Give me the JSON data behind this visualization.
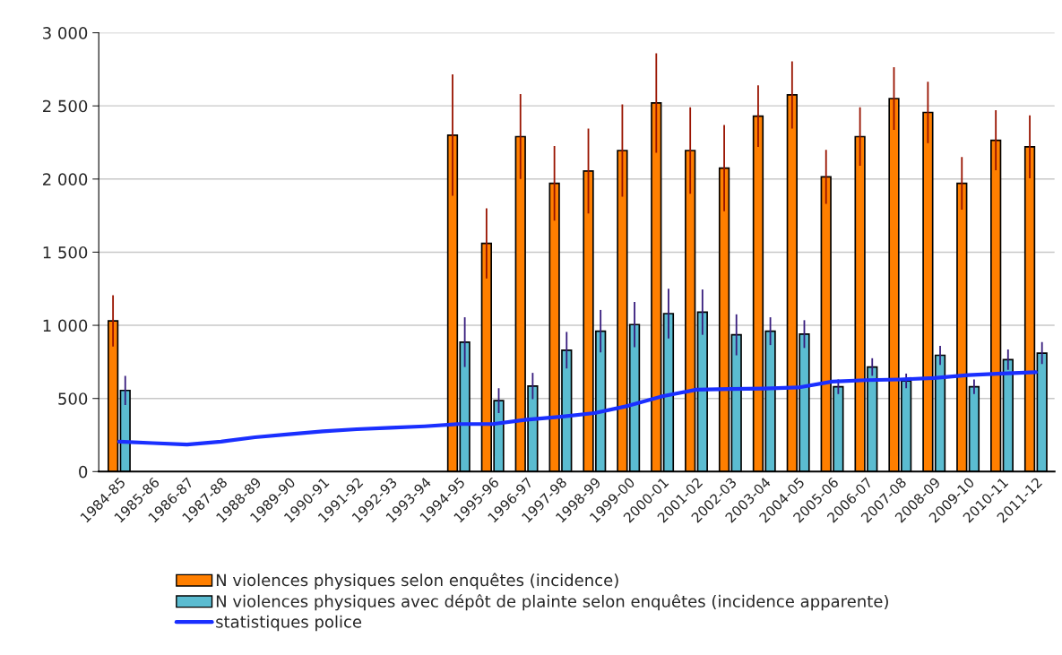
{
  "chart_data": {
    "type": "bar",
    "categories": [
      "1984-85",
      "1985-86",
      "1986-87",
      "1987-88",
      "1988-89",
      "1989-90",
      "1990-91",
      "1991-92",
      "1992-93",
      "1993-94",
      "1994-95",
      "1995-96",
      "1996-97",
      "1997-98",
      "1998-99",
      "1999-00",
      "2000-01",
      "2001-02",
      "2002-03",
      "2003-04",
      "2004-05",
      "2005-06",
      "2006-07",
      "2007-08",
      "2008-09",
      "2009-10",
      "2010-11",
      "2011-12"
    ],
    "series": [
      {
        "name": "N violences physiques selon enquêtes (incidence)",
        "color": "#ff7f00",
        "values": [
          1030,
          null,
          null,
          null,
          null,
          null,
          null,
          null,
          null,
          null,
          2300,
          1560,
          2290,
          1970,
          2055,
          2195,
          2520,
          2195,
          2075,
          2430,
          2575,
          2015,
          2290,
          2550,
          2455,
          1970,
          2265,
          2220
        ],
        "errors": [
          175,
          null,
          null,
          null,
          null,
          null,
          null,
          null,
          null,
          null,
          415,
          240,
          290,
          255,
          290,
          315,
          340,
          295,
          295,
          210,
          230,
          185,
          200,
          215,
          210,
          180,
          205,
          215
        ]
      },
      {
        "name": "N violences physiques avec dépôt de plainte selon enquêtes (incidence apparente)",
        "color": "#5bbcd1",
        "values": [
          555,
          null,
          null,
          null,
          null,
          null,
          null,
          null,
          null,
          null,
          885,
          485,
          585,
          830,
          960,
          1005,
          1080,
          1090,
          935,
          960,
          940,
          580,
          715,
          620,
          795,
          580,
          765,
          810
        ],
        "errors": [
          100,
          null,
          null,
          null,
          null,
          null,
          null,
          null,
          null,
          null,
          170,
          85,
          90,
          125,
          145,
          155,
          170,
          155,
          140,
          95,
          95,
          50,
          60,
          50,
          65,
          50,
          70,
          75
        ]
      },
      {
        "name": "statistiques police",
        "type": "line",
        "color": "#1a2fff",
        "values": [
          205,
          195,
          185,
          205,
          235,
          255,
          275,
          290,
          300,
          310,
          325,
          325,
          355,
          375,
          400,
          450,
          515,
          560,
          565,
          568,
          575,
          615,
          625,
          630,
          640,
          660,
          670,
          680
        ]
      }
    ],
    "ylim": [
      0,
      3000
    ],
    "yticks": [
      0,
      {
        "value": 500,
        "label": "500"
      },
      {
        "value": 1000,
        "label": "1 000"
      },
      {
        "value": 1500,
        "label": "1 500"
      },
      {
        "value": 2000,
        "label": "2 000"
      },
      {
        "value": 2500,
        "label": "2 500"
      },
      {
        "value": 3000,
        "label": "3 000"
      }
    ],
    "grid": "y",
    "legend": "bottom"
  }
}
